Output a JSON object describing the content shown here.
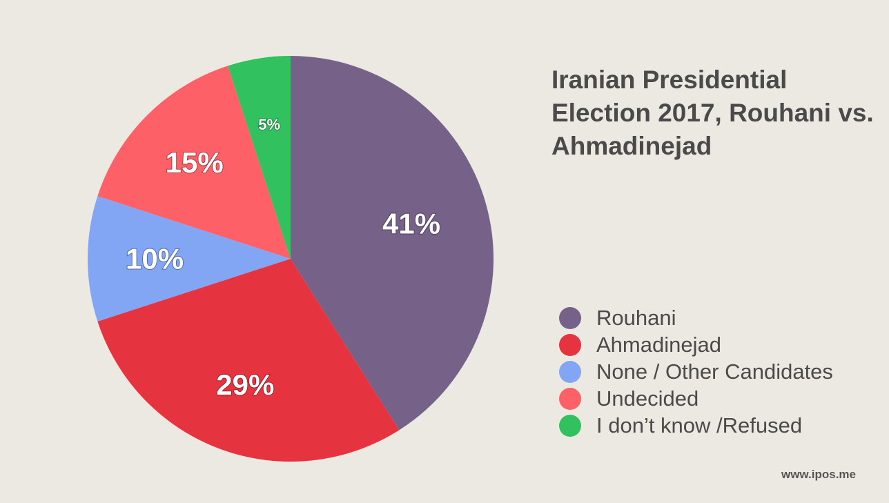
{
  "title": "Iranian Presidential Election 2017, Rouhani vs. Ahmadinejad",
  "source": "www.ipos.me",
  "chart_data": {
    "type": "pie",
    "title": "Iranian Presidential Election 2017, Rouhani vs. Ahmadinejad",
    "start_angle": "12 o'clock",
    "direction": "clockwise",
    "legend_position": "right",
    "slices": [
      {
        "label": "Rouhani",
        "value": 41,
        "display": "41%",
        "color": "#766189"
      },
      {
        "label": "Ahmadinejad",
        "value": 29,
        "display": "29%",
        "color": "#e5333f"
      },
      {
        "label": "None / Other Candidates",
        "value": 10,
        "display": "10%",
        "color": "#82a5f4"
      },
      {
        "label": "Undecided",
        "value": 15,
        "display": "15%",
        "color": "#fe6068"
      },
      {
        "label": "I don’t know /Refused",
        "value": 5,
        "display": "5%",
        "color": "#31c25f"
      }
    ]
  },
  "legend": {
    "items": [
      {
        "label": "Rouhani",
        "color": "#766189"
      },
      {
        "label": "Ahmadinejad",
        "color": "#e5333f"
      },
      {
        "label": "None / Other Candidates",
        "color": "#82a5f4"
      },
      {
        "label": "Undecided",
        "color": "#fe6068"
      },
      {
        "label": "I don’t know /Refused",
        "color": "#31c25f"
      }
    ]
  }
}
